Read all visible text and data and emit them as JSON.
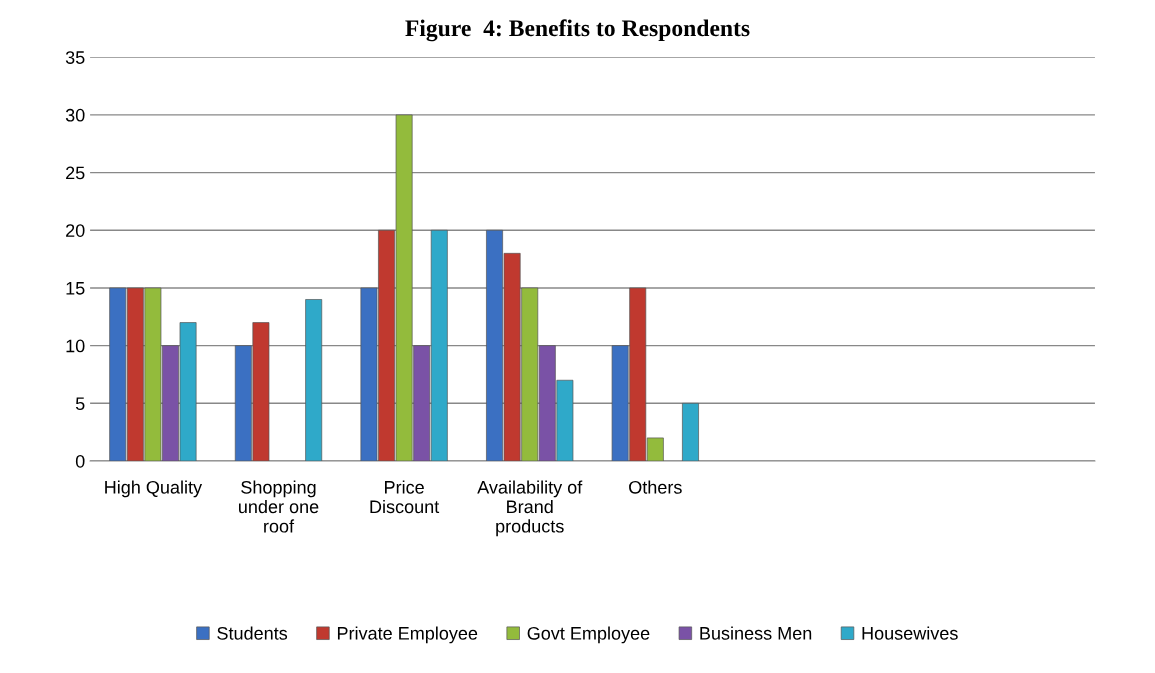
{
  "chart_data": {
    "type": "bar",
    "title": "Figure  4: Benefits to Respondents",
    "categories": [
      "High Quality",
      "Shopping\nunder one\nroof",
      "Price\nDiscount",
      "Availability of\nBrand\nproducts",
      "Others",
      null,
      null,
      null
    ],
    "series": [
      {
        "name": "Students",
        "color": "#3b70c2",
        "values": [
          15,
          10,
          15,
          20,
          10,
          null,
          null,
          null
        ]
      },
      {
        "name": "Private Employee",
        "color": "#c0392f",
        "values": [
          15,
          12,
          20,
          18,
          15,
          null,
          null,
          null
        ]
      },
      {
        "name": "Govt Employee",
        "color": "#93bb3c",
        "values": [
          15,
          null,
          30,
          15,
          2,
          null,
          null,
          null
        ]
      },
      {
        "name": "Business Men",
        "color": "#7a52a6",
        "values": [
          10,
          null,
          10,
          10,
          null,
          null,
          null,
          null
        ]
      },
      {
        "name": "Housewives",
        "color": "#2fa9c9",
        "values": [
          12,
          14,
          20,
          7,
          5,
          null,
          null,
          null
        ]
      }
    ],
    "ylim": [
      0,
      35
    ],
    "yticks": [
      0,
      5,
      10,
      15,
      20,
      25,
      30,
      35
    ],
    "grid": "y",
    "legend": "bottom"
  }
}
